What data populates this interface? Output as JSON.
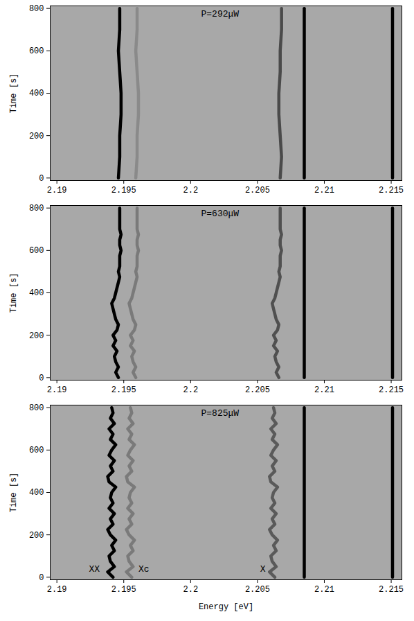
{
  "chart_data": [
    {
      "type": "line",
      "annotations": [
        {
          "text": "P=292μW",
          "x": 2.2022,
          "y": 775
        }
      ],
      "xlim": [
        2.1895,
        2.2158
      ],
      "ylim": [
        -12,
        812
      ],
      "xticks": [
        2.19,
        2.195,
        2.2,
        2.205,
        2.21,
        2.215
      ],
      "yticks": [
        0,
        200,
        400,
        600,
        800
      ],
      "ylabel": "Time [s]",
      "series": [
        {
          "color": "#000000",
          "time": [
            0,
            100,
            200,
            300,
            400,
            500,
            600,
            700,
            800
          ],
          "values": [
            2.1946,
            2.1947,
            2.1947,
            2.1948,
            2.1948,
            2.1947,
            2.1946,
            2.1947,
            2.1947
          ]
        },
        {
          "color": "#8a8a8a",
          "time": [
            0,
            100,
            200,
            300,
            400,
            500,
            600,
            700,
            800
          ],
          "values": [
            2.1959,
            2.196,
            2.196,
            2.1961,
            2.1961,
            2.196,
            2.1959,
            2.196,
            2.196
          ]
        },
        {
          "color": "#4a4a4a",
          "time": [
            0,
            100,
            200,
            300,
            400,
            500,
            600,
            700,
            800
          ],
          "values": [
            2.2067,
            2.2068,
            2.2067,
            2.2066,
            2.2066,
            2.2067,
            2.2067,
            2.2068,
            2.2068
          ]
        },
        {
          "color": "#000000",
          "time": [
            0,
            800
          ],
          "values": [
            2.2085,
            2.2085
          ]
        },
        {
          "color": "#000000",
          "time": [
            0,
            800
          ],
          "values": [
            2.2151,
            2.2151
          ]
        }
      ]
    },
    {
      "type": "line",
      "annotations": [
        {
          "text": "P=630μW",
          "x": 2.2022,
          "y": 775
        }
      ],
      "xlim": [
        2.1895,
        2.2158
      ],
      "ylim": [
        -12,
        812
      ],
      "xticks": [
        2.19,
        2.195,
        2.2,
        2.205,
        2.21,
        2.215
      ],
      "yticks": [
        0,
        200,
        400,
        600,
        800
      ],
      "ylabel": "Time [s]",
      "series": [
        {
          "color": "#000000",
          "time": [
            0,
            25,
            50,
            75,
            100,
            125,
            150,
            175,
            200,
            225,
            250,
            275,
            300,
            325,
            350,
            375,
            400,
            425,
            450,
            475,
            500,
            525,
            550,
            575,
            600,
            625,
            650,
            675,
            700,
            725,
            750,
            775,
            800
          ],
          "values": [
            2.1946,
            2.1944,
            2.1946,
            2.1944,
            2.1943,
            2.1945,
            2.1942,
            2.1944,
            2.1942,
            2.1945,
            2.1946,
            2.1944,
            2.1943,
            2.1942,
            2.1941,
            2.1943,
            2.1944,
            2.1945,
            2.1946,
            2.1947,
            2.1946,
            2.1947,
            2.1947,
            2.1947,
            2.1948,
            2.1947,
            2.1947,
            2.1948,
            2.1947,
            2.1947,
            2.1947,
            2.1947,
            2.1947
          ]
        },
        {
          "color": "#7a7a7a",
          "time": [
            0,
            25,
            50,
            75,
            100,
            125,
            150,
            175,
            200,
            225,
            250,
            275,
            300,
            325,
            350,
            375,
            400,
            425,
            450,
            475,
            500,
            525,
            550,
            575,
            600,
            625,
            650,
            675,
            700,
            725,
            750,
            775,
            800
          ],
          "values": [
            2.1959,
            2.1957,
            2.1959,
            2.1957,
            2.1956,
            2.1958,
            2.1955,
            2.1957,
            2.1955,
            2.1958,
            2.1959,
            2.1957,
            2.1956,
            2.1955,
            2.1954,
            2.1956,
            2.1957,
            2.1958,
            2.1959,
            2.196,
            2.1959,
            2.196,
            2.196,
            2.196,
            2.1961,
            2.196,
            2.196,
            2.1961,
            2.196,
            2.196,
            2.196,
            2.196,
            2.196
          ]
        },
        {
          "color": "#505050",
          "time": [
            0,
            25,
            50,
            75,
            100,
            125,
            150,
            175,
            200,
            225,
            250,
            275,
            300,
            325,
            350,
            375,
            400,
            425,
            450,
            475,
            500,
            525,
            550,
            575,
            600,
            625,
            650,
            675,
            700,
            725,
            750,
            775,
            800
          ],
          "values": [
            2.2066,
            2.2064,
            2.2066,
            2.2064,
            2.2063,
            2.2065,
            2.2062,
            2.2064,
            2.2062,
            2.2065,
            2.2066,
            2.2064,
            2.2063,
            2.2062,
            2.2061,
            2.2063,
            2.2064,
            2.2065,
            2.2066,
            2.2067,
            2.2066,
            2.2067,
            2.2067,
            2.2067,
            2.2068,
            2.2067,
            2.2067,
            2.2068,
            2.2067,
            2.2067,
            2.2067,
            2.2067,
            2.2067
          ]
        },
        {
          "color": "#000000",
          "time": [
            0,
            800
          ],
          "values": [
            2.2085,
            2.2085
          ]
        },
        {
          "color": "#000000",
          "time": [
            0,
            800
          ],
          "values": [
            2.2151,
            2.2151
          ]
        }
      ]
    },
    {
      "type": "line",
      "annotations": [
        {
          "text": "P=825μW",
          "x": 2.2022,
          "y": 775
        },
        {
          "text": "XX",
          "x": 2.1928,
          "y": 40
        },
        {
          "text": "Xc",
          "x": 2.1965,
          "y": 40
        },
        {
          "text": "X",
          "x": 2.2054,
          "y": 40
        }
      ],
      "xlim": [
        2.1895,
        2.2158
      ],
      "ylim": [
        -12,
        812
      ],
      "xticks": [
        2.19,
        2.195,
        2.2,
        2.205,
        2.21,
        2.215
      ],
      "yticks": [
        0,
        200,
        400,
        600,
        800
      ],
      "xlabel": "Energy [eV]",
      "ylabel": "Time [s]",
      "series": [
        {
          "color": "#000000",
          "time": [
            0,
            25,
            50,
            75,
            100,
            125,
            150,
            175,
            200,
            225,
            250,
            275,
            300,
            325,
            350,
            375,
            400,
            425,
            450,
            475,
            500,
            525,
            550,
            575,
            600,
            625,
            650,
            675,
            700,
            725,
            750,
            775,
            800
          ],
          "values": [
            2.1942,
            2.1938,
            2.1943,
            2.194,
            2.1939,
            2.1943,
            2.1941,
            2.1944,
            2.194,
            2.1938,
            2.1942,
            2.194,
            2.1943,
            2.1939,
            2.1942,
            2.194,
            2.1941,
            2.1944,
            2.1939,
            2.1938,
            2.1942,
            2.194,
            2.1943,
            2.1939,
            2.1941,
            2.1944,
            2.194,
            2.1942,
            2.1939,
            2.1943,
            2.194,
            2.1942,
            2.1941
          ]
        },
        {
          "color": "#7a7a7a",
          "time": [
            0,
            25,
            50,
            75,
            100,
            125,
            150,
            175,
            200,
            225,
            250,
            275,
            300,
            325,
            350,
            375,
            400,
            425,
            450,
            475,
            500,
            525,
            550,
            575,
            600,
            625,
            650,
            675,
            700,
            725,
            750,
            775,
            800
          ],
          "values": [
            2.1956,
            2.1952,
            2.1957,
            2.1954,
            2.1953,
            2.1957,
            2.1955,
            2.1958,
            2.1954,
            2.1952,
            2.1956,
            2.1954,
            2.1957,
            2.1953,
            2.1956,
            2.1954,
            2.1955,
            2.1958,
            2.1953,
            2.1952,
            2.1956,
            2.1954,
            2.1957,
            2.1953,
            2.1955,
            2.1958,
            2.1954,
            2.1956,
            2.1953,
            2.1957,
            2.1954,
            2.1956,
            2.1955
          ]
        },
        {
          "color": "#5a5a5a",
          "time": [
            0,
            25,
            50,
            75,
            100,
            125,
            150,
            175,
            200,
            225,
            250,
            275,
            300,
            325,
            350,
            375,
            400,
            425,
            450,
            475,
            500,
            525,
            550,
            575,
            600,
            625,
            650,
            675,
            700,
            725,
            750,
            775,
            800
          ],
          "values": [
            2.2063,
            2.2059,
            2.2064,
            2.2061,
            2.206,
            2.2064,
            2.2062,
            2.2065,
            2.2061,
            2.2059,
            2.2063,
            2.2061,
            2.2064,
            2.206,
            2.2063,
            2.2061,
            2.2062,
            2.2065,
            2.206,
            2.2059,
            2.2063,
            2.2061,
            2.2064,
            2.206,
            2.2062,
            2.2065,
            2.2061,
            2.2063,
            2.206,
            2.2064,
            2.2061,
            2.2063,
            2.2062
          ]
        },
        {
          "color": "#000000",
          "time": [
            0,
            800
          ],
          "values": [
            2.2085,
            2.2085
          ]
        },
        {
          "color": "#000000",
          "time": [
            0,
            800
          ],
          "values": [
            2.2151,
            2.2151
          ]
        }
      ]
    }
  ]
}
